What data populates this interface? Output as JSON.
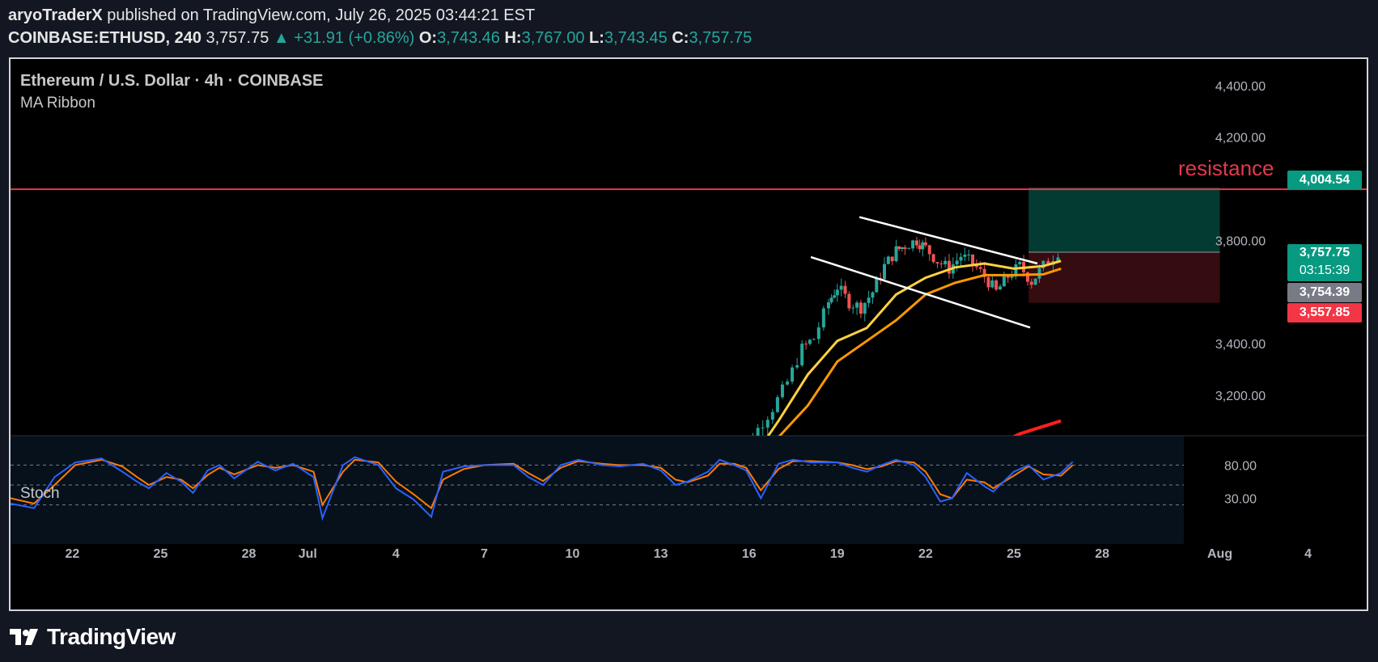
{
  "header": {
    "author": "aryoTraderX",
    "published": "published on TradingView.com, July 26, 2025 03:44:21 EST",
    "symbol": "COINBASE:ETHUSD, 240",
    "last": "3,757.75",
    "change": "▲ +31.91 (+0.86%)",
    "o_label": "O:",
    "o": "3,743.46",
    "h_label": "H:",
    "h": "3,767.00",
    "l_label": "L:",
    "l": "3,743.45",
    "c_label": "C:",
    "c": "3,757.75"
  },
  "legend": {
    "title": "Ethereum / U.S. Dollar · 4h · COINBASE",
    "indicator": "MA Ribbon"
  },
  "annotation": {
    "resistance_label": "resistance"
  },
  "price_tags": {
    "resistance": "4,004.54",
    "last": "3,757.75",
    "countdown": "03:15:39",
    "ma": "3,754.39",
    "stop": "3,557.85"
  },
  "stoch": {
    "label": "Stoch",
    "upper": "80.00",
    "lower": "30.00"
  },
  "footer": {
    "brand": "TradingView"
  },
  "colors": {
    "up": "#26a69a",
    "down": "#ef5350",
    "resistance": "#e23a4a",
    "ma_fast": "#ffd23f",
    "ma_slow": "#ff9800",
    "ma_long": "#ff1f1f",
    "stoch_k": "#2962ff",
    "stoch_d": "#ff7a00"
  },
  "chart_data": {
    "type": "candlestick",
    "interval": "4h",
    "y_ticks": [
      "3,200.00",
      "3,400.00",
      "3,800.00",
      "4,200.00",
      "4,400.00"
    ],
    "y_tick_values": [
      3200,
      3400,
      3800,
      4200,
      4400
    ],
    "x_ticks": [
      "22",
      "25",
      "28",
      "Jul",
      "4",
      "7",
      "10",
      "13",
      "16",
      "19",
      "22",
      "25",
      "28",
      "Aug",
      "4"
    ],
    "x_tick_days": [
      -8,
      -5,
      -2,
      0,
      3,
      6,
      9,
      12,
      15,
      18,
      21,
      24,
      27,
      31,
      34
    ],
    "ylim": [
      2980,
      4440
    ],
    "xlim_days": [
      -10.1,
      35.0
    ],
    "resistance_level": 3998,
    "position": {
      "start_day": 24.5,
      "end_day": 31.0,
      "entry": 3754,
      "target": 4004.54,
      "stop": 3557.85
    },
    "channel": [
      {
        "p1": [
          18.75,
          3890
        ],
        "p2": [
          24.8,
          3710
        ]
      },
      {
        "p1": [
          17.1,
          3735
        ],
        "p2": [
          24.55,
          3462
        ]
      }
    ],
    "ma_fast": [
      [
        15.4,
        3000
      ],
      [
        16.0,
        3100
      ],
      [
        17.0,
        3280
      ],
      [
        18.0,
        3410
      ],
      [
        19.0,
        3460
      ],
      [
        20.0,
        3590
      ],
      [
        21.0,
        3655
      ],
      [
        22.0,
        3695
      ],
      [
        23.0,
        3710
      ],
      [
        24.0,
        3690
      ],
      [
        25.0,
        3700
      ],
      [
        25.6,
        3720
      ]
    ],
    "ma_slow": [
      [
        15.7,
        3000
      ],
      [
        17.0,
        3160
      ],
      [
        18.0,
        3330
      ],
      [
        19.0,
        3410
      ],
      [
        20.0,
        3490
      ],
      [
        21.0,
        3590
      ],
      [
        22.0,
        3635
      ],
      [
        23.0,
        3665
      ],
      [
        24.0,
        3665
      ],
      [
        25.0,
        3668
      ],
      [
        25.6,
        3690
      ]
    ],
    "ma_long": [
      [
        23.3,
        3000
      ],
      [
        24.2,
        3050
      ],
      [
        25.6,
        3100
      ]
    ],
    "stoch_k": [
      [
        -10.1,
        22
      ],
      [
        -9.3,
        15
      ],
      [
        -8.6,
        62
      ],
      [
        -7.9,
        84
      ],
      [
        -7.0,
        90
      ],
      [
        -6.3,
        70
      ],
      [
        -5.8,
        55
      ],
      [
        -5.4,
        45
      ],
      [
        -4.8,
        68
      ],
      [
        -4.3,
        55
      ],
      [
        -3.9,
        38
      ],
      [
        -3.4,
        72
      ],
      [
        -3.0,
        80
      ],
      [
        -2.5,
        60
      ],
      [
        -1.7,
        85
      ],
      [
        -1.1,
        72
      ],
      [
        -0.5,
        82
      ],
      [
        0.2,
        62
      ],
      [
        0.5,
        0
      ],
      [
        1.2,
        80
      ],
      [
        1.6,
        92
      ],
      [
        2.4,
        80
      ],
      [
        3.0,
        45
      ],
      [
        3.6,
        28
      ],
      [
        4.2,
        2
      ],
      [
        4.6,
        70
      ],
      [
        5.3,
        78
      ],
      [
        6.0,
        80
      ],
      [
        7.0,
        80
      ],
      [
        7.5,
        62
      ],
      [
        8.0,
        50
      ],
      [
        8.6,
        80
      ],
      [
        9.2,
        88
      ],
      [
        10.0,
        80
      ],
      [
        10.6,
        78
      ],
      [
        11.4,
        82
      ],
      [
        12.0,
        72
      ],
      [
        12.5,
        50
      ],
      [
        12.9,
        55
      ],
      [
        13.6,
        70
      ],
      [
        14.0,
        88
      ],
      [
        14.5,
        80
      ],
      [
        14.9,
        72
      ],
      [
        15.4,
        30
      ],
      [
        16.0,
        82
      ],
      [
        16.5,
        88
      ],
      [
        17.1,
        84
      ],
      [
        18.0,
        84
      ],
      [
        18.5,
        76
      ],
      [
        19.0,
        70
      ],
      [
        19.5,
        80
      ],
      [
        20.0,
        88
      ],
      [
        20.6,
        80
      ],
      [
        21.0,
        62
      ],
      [
        21.5,
        25
      ],
      [
        21.9,
        30
      ],
      [
        22.4,
        68
      ],
      [
        23.0,
        48
      ],
      [
        23.3,
        40
      ],
      [
        24.0,
        70
      ],
      [
        24.5,
        80
      ],
      [
        25.0,
        58
      ],
      [
        25.6,
        68
      ],
      [
        26.0,
        85
      ]
    ],
    "stoch_d": [
      [
        -10.1,
        30
      ],
      [
        -9.3,
        22
      ],
      [
        -8.6,
        50
      ],
      [
        -7.9,
        80
      ],
      [
        -7.0,
        88
      ],
      [
        -6.3,
        78
      ],
      [
        -5.8,
        62
      ],
      [
        -5.4,
        50
      ],
      [
        -4.8,
        62
      ],
      [
        -4.3,
        58
      ],
      [
        -3.9,
        45
      ],
      [
        -3.4,
        65
      ],
      [
        -3.0,
        76
      ],
      [
        -2.5,
        66
      ],
      [
        -1.7,
        80
      ],
      [
        -1.1,
        76
      ],
      [
        -0.5,
        80
      ],
      [
        0.2,
        70
      ],
      [
        0.5,
        20
      ],
      [
        1.2,
        70
      ],
      [
        1.6,
        88
      ],
      [
        2.4,
        84
      ],
      [
        3.0,
        55
      ],
      [
        3.6,
        36
      ],
      [
        4.2,
        15
      ],
      [
        4.6,
        58
      ],
      [
        5.3,
        74
      ],
      [
        6.0,
        80
      ],
      [
        7.0,
        82
      ],
      [
        7.5,
        68
      ],
      [
        8.0,
        56
      ],
      [
        8.6,
        76
      ],
      [
        9.2,
        86
      ],
      [
        10.0,
        82
      ],
      [
        10.6,
        80
      ],
      [
        11.4,
        80
      ],
      [
        12.0,
        76
      ],
      [
        12.5,
        58
      ],
      [
        12.9,
        54
      ],
      [
        13.6,
        64
      ],
      [
        14.0,
        82
      ],
      [
        14.5,
        82
      ],
      [
        14.9,
        76
      ],
      [
        15.4,
        42
      ],
      [
        16.0,
        74
      ],
      [
        16.5,
        86
      ],
      [
        17.1,
        86
      ],
      [
        18.0,
        84
      ],
      [
        18.5,
        80
      ],
      [
        19.0,
        74
      ],
      [
        19.5,
        78
      ],
      [
        20.0,
        86
      ],
      [
        20.6,
        84
      ],
      [
        21.0,
        70
      ],
      [
        21.5,
        36
      ],
      [
        21.9,
        30
      ],
      [
        22.4,
        58
      ],
      [
        23.0,
        54
      ],
      [
        23.3,
        45
      ],
      [
        24.0,
        64
      ],
      [
        24.5,
        78
      ],
      [
        25.0,
        66
      ],
      [
        25.6,
        64
      ],
      [
        26.0,
        80
      ]
    ],
    "candles_anchor": [
      [
        14.2,
        2975
      ],
      [
        14.8,
        3000
      ],
      [
        15.3,
        3070
      ],
      [
        15.8,
        3150
      ],
      [
        16.3,
        3250
      ],
      [
        16.8,
        3380
      ],
      [
        17.2,
        3420
      ],
      [
        17.7,
        3560
      ],
      [
        18.0,
        3620
      ],
      [
        18.4,
        3560
      ],
      [
        18.8,
        3540
      ],
      [
        19.2,
        3600
      ],
      [
        19.6,
        3700
      ],
      [
        20.0,
        3760
      ],
      [
        20.3,
        3780
      ],
      [
        20.7,
        3800
      ],
      [
        21.0,
        3770
      ],
      [
        21.4,
        3720
      ],
      [
        21.8,
        3690
      ],
      [
        22.2,
        3740
      ],
      [
        22.6,
        3710
      ],
      [
        23.0,
        3660
      ],
      [
        23.4,
        3600
      ],
      [
        23.8,
        3660
      ],
      [
        24.2,
        3700
      ],
      [
        24.6,
        3640
      ],
      [
        25.0,
        3700
      ],
      [
        25.5,
        3757
      ]
    ]
  }
}
